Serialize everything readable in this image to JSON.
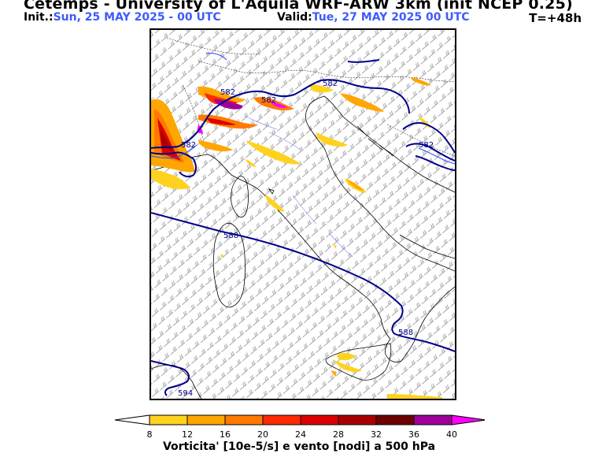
{
  "header": {
    "title": "Cetemps - University of L'Aquila  WRF-ARW 3km (init NCEP 0.25)",
    "init_label": "Init.:",
    "init_value": "Sun, 25 MAY 2025 - 00 UTC",
    "valid_label": "Valid:",
    "valid_value": "Tue, 27 MAY 2025  00 UTC",
    "forecast_hour": "T=+48h"
  },
  "map": {
    "contour_labels": [
      "582",
      "582",
      "582",
      "582",
      "582",
      "588",
      "588",
      "594"
    ],
    "contour_color": "#00008b"
  },
  "colorbar": {
    "ticks": [
      "8",
      "12",
      "16",
      "20",
      "24",
      "28",
      "32",
      "36",
      "40"
    ],
    "colors": [
      "#ffd21e",
      "#ffa600",
      "#ff7a00",
      "#ff2a00",
      "#dd0000",
      "#a80000",
      "#6e0000",
      "#a0009a",
      "#ff00ff"
    ],
    "label": "Vorticita' [10e-5/s] e vento [nodi] a 500 hPa"
  }
}
